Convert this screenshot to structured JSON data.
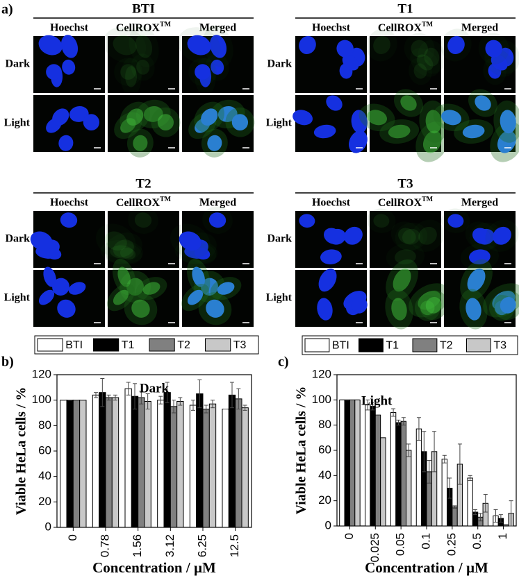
{
  "panel_labels": [
    "a)",
    "b)",
    "c)"
  ],
  "microscopy": [
    {
      "title": "BTI",
      "columns": [
        "Hoechst",
        {
          "text": "CellROX",
          "sup": "TM"
        },
        "Merged"
      ],
      "rows": [
        "Dark",
        "Light"
      ]
    },
    {
      "title": "T1",
      "columns": [
        "Hoechst",
        {
          "text": "CellROX",
          "sup": "TM"
        },
        "Merged"
      ],
      "rows": [
        "Dark",
        "Light"
      ]
    },
    {
      "title": "T2",
      "columns": [
        "Hoechst",
        {
          "text": "CellROX",
          "sup": "TM"
        },
        "Merged"
      ],
      "rows": [
        "Dark",
        "Light"
      ]
    },
    {
      "title": "T3",
      "columns": [
        "Hoechst",
        {
          "text": "CellROX",
          "sup": "TM"
        },
        "Merged"
      ],
      "rows": [
        "Dark",
        "Light"
      ]
    }
  ],
  "chart_data": [
    {
      "type": "bar",
      "title": "Dark",
      "x_label": "Concentration / µM",
      "y_label": "Viable HeLa cells / %",
      "categories": [
        "0",
        "0.78",
        "1.56",
        "3.12",
        "6.25",
        "12.5"
      ],
      "ylim": [
        0,
        120
      ],
      "yticks": [
        0,
        20,
        40,
        60,
        80,
        100,
        120
      ],
      "legend": "top",
      "series": [
        {
          "name": "BTI",
          "color": "#ffffff",
          "values": [
            100,
            104,
            109,
            100,
            96,
            93
          ],
          "errors": [
            0,
            2,
            5,
            3,
            4,
            0
          ]
        },
        {
          "name": "T1",
          "color": "#000000",
          "values": [
            100,
            106,
            103,
            106,
            105,
            104
          ],
          "errors": [
            0,
            11,
            10,
            8,
            11,
            10
          ]
        },
        {
          "name": "T2",
          "color": "#808080",
          "values": [
            100,
            102,
            102,
            95,
            93,
            101
          ],
          "errors": [
            0,
            2,
            5,
            5,
            3,
            8
          ]
        },
        {
          "name": "T3",
          "color": "#c8c8c8",
          "values": [
            100,
            102,
            99,
            99,
            97,
            94
          ],
          "errors": [
            0,
            2,
            6,
            3,
            3,
            2
          ]
        }
      ]
    },
    {
      "type": "bar",
      "title": "Light",
      "x_label": "Concentration / µM",
      "y_label": "Viable HeLa cells / %",
      "categories": [
        "0",
        "0.025",
        "0.05",
        "0.1",
        "0.25",
        "0.5",
        "1"
      ],
      "ylim": [
        0,
        120
      ],
      "yticks": [
        0,
        20,
        40,
        60,
        80,
        100,
        120
      ],
      "legend": "top",
      "series": [
        {
          "name": "BTI",
          "color": "#ffffff",
          "values": [
            100,
            96,
            90,
            77,
            53,
            38,
            8
          ],
          "errors": [
            0,
            4,
            3,
            9,
            3,
            2,
            5
          ]
        },
        {
          "name": "T1",
          "color": "#000000",
          "values": [
            100,
            95,
            82,
            59,
            30,
            11,
            6
          ],
          "errors": [
            0,
            3,
            2,
            16,
            8,
            2,
            3
          ]
        },
        {
          "name": "T2",
          "color": "#808080",
          "values": [
            100,
            88,
            83,
            43,
            15,
            7,
            1
          ],
          "errors": [
            0,
            0,
            3,
            9,
            1,
            3,
            0
          ]
        },
        {
          "name": "T3",
          "color": "#c8c8c8",
          "values": [
            100,
            70,
            60,
            59,
            49,
            18,
            10
          ],
          "errors": [
            0,
            0,
            5,
            16,
            16,
            7,
            10
          ]
        }
      ]
    }
  ]
}
